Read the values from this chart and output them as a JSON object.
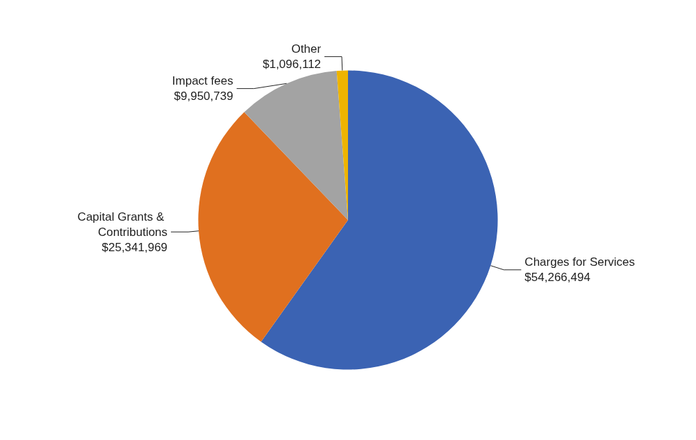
{
  "chart_data": {
    "type": "pie",
    "categories": [
      "Charges for Services",
      "Capital Grants & Contributions",
      "Impact fees",
      "Other"
    ],
    "values": [
      54266494,
      25341969,
      9950739,
      1096112
    ],
    "colors": [
      "#3b63b3",
      "#e0701f",
      "#a3a3a3",
      "#eeb400"
    ],
    "value_labels": [
      "$54,266,494",
      "$25,341,969",
      "$9,950,739",
      "$1,096,112"
    ],
    "legend": false
  }
}
